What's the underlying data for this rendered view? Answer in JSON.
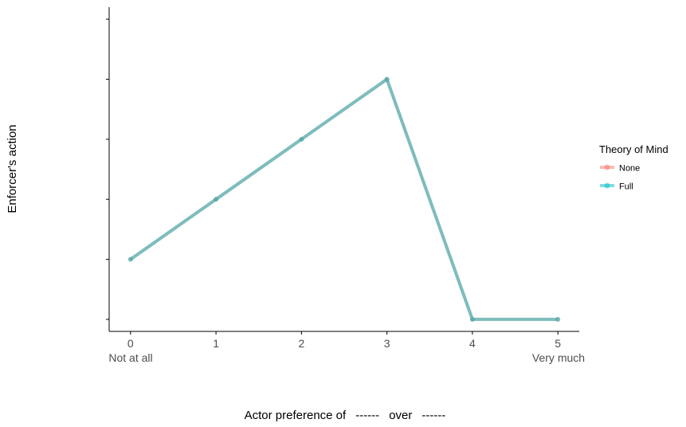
{
  "chart_data": {
    "type": "line",
    "x": [
      0,
      1,
      2,
      3,
      4,
      5
    ],
    "x_tick_labels": [
      "0",
      "1",
      "2",
      "3",
      "4",
      "5"
    ],
    "x_endpoint_labels": {
      "low": "Not at all",
      "high": "Very much"
    },
    "xlim": [
      -0.25,
      5.25
    ],
    "ylim": [
      -0.2,
      5.2
    ],
    "y_ticks": [
      0,
      1,
      2,
      3,
      4,
      5
    ],
    "y_tick_labels_visible": false,
    "xlabel": {
      "prefix": "Actor preference of",
      "blank1": "------",
      "middle": "over",
      "blank2": "------"
    },
    "ylabel": "Enforcer's action",
    "series": [
      {
        "name": "None",
        "color": "#F8766D",
        "values": [
          1,
          2,
          3,
          4,
          0,
          0
        ]
      },
      {
        "name": "Full",
        "color": "#00BFC4",
        "values": [
          1,
          2,
          3,
          4,
          0,
          0
        ]
      }
    ],
    "legend": {
      "title": "Theory of Mind",
      "placement": "right",
      "entries": [
        "None",
        "Full"
      ]
    },
    "grid": false
  }
}
